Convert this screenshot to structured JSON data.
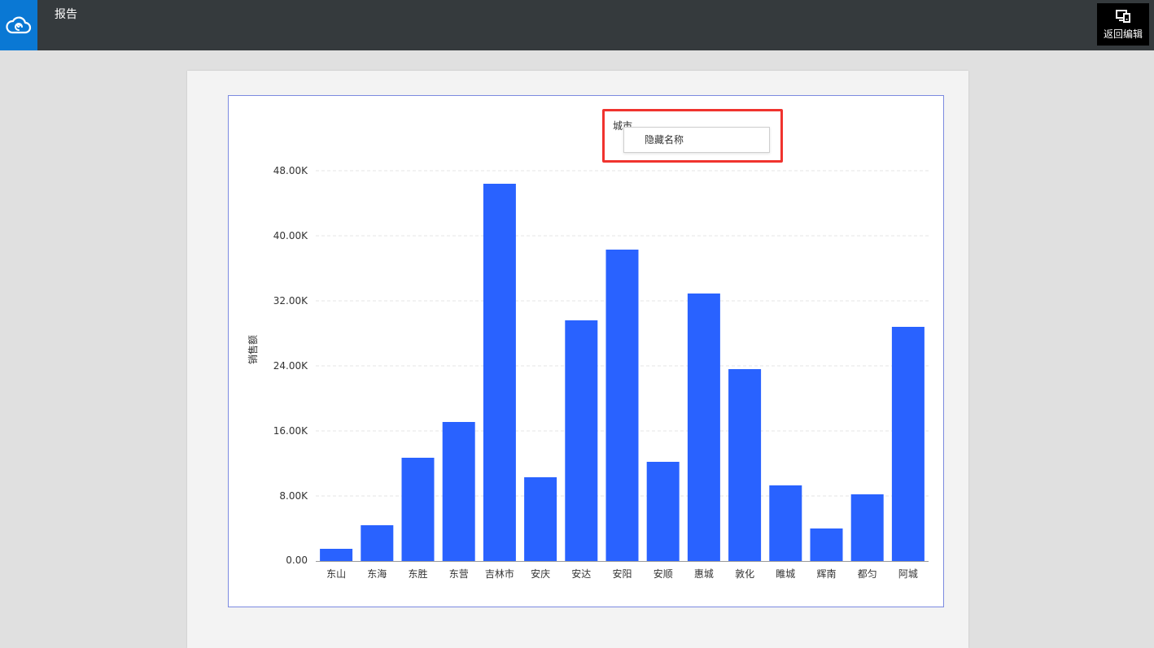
{
  "header": {
    "title": "报告",
    "edit_button_label": "返回编辑",
    "logo_icon": "cloud-icon",
    "edit_icon": "device-icon"
  },
  "legend": {
    "title": "城市"
  },
  "context_menu": {
    "items": [
      {
        "label": "隐藏名称"
      }
    ]
  },
  "colors": {
    "topbar": "#353a3d",
    "logo_bg": "#0a78d4",
    "bar": "#2962ff",
    "highlight": "#f0332e"
  },
  "chart_data": {
    "type": "bar",
    "categories": [
      "东山",
      "东海",
      "东胜",
      "东营",
      "吉林市",
      "安庆",
      "安达",
      "安阳",
      "安顺",
      "惠城",
      "敦化",
      "睢城",
      "辉南",
      "都匀",
      "阿城"
    ],
    "values": [
      1500,
      4400,
      12700,
      17100,
      46400,
      10300,
      29600,
      38300,
      12200,
      32900,
      23600,
      9300,
      4000,
      8200,
      28800
    ],
    "ylabel": "销售额",
    "xlabel": "",
    "ylim": [
      0,
      48000
    ],
    "yticks": [
      0,
      8000,
      16000,
      24000,
      32000,
      40000,
      48000
    ],
    "ytick_labels": [
      "0.00",
      "8.00K",
      "16.00K",
      "24.00K",
      "32.00K",
      "40.00K",
      "48.00K"
    ],
    "grid": true
  }
}
